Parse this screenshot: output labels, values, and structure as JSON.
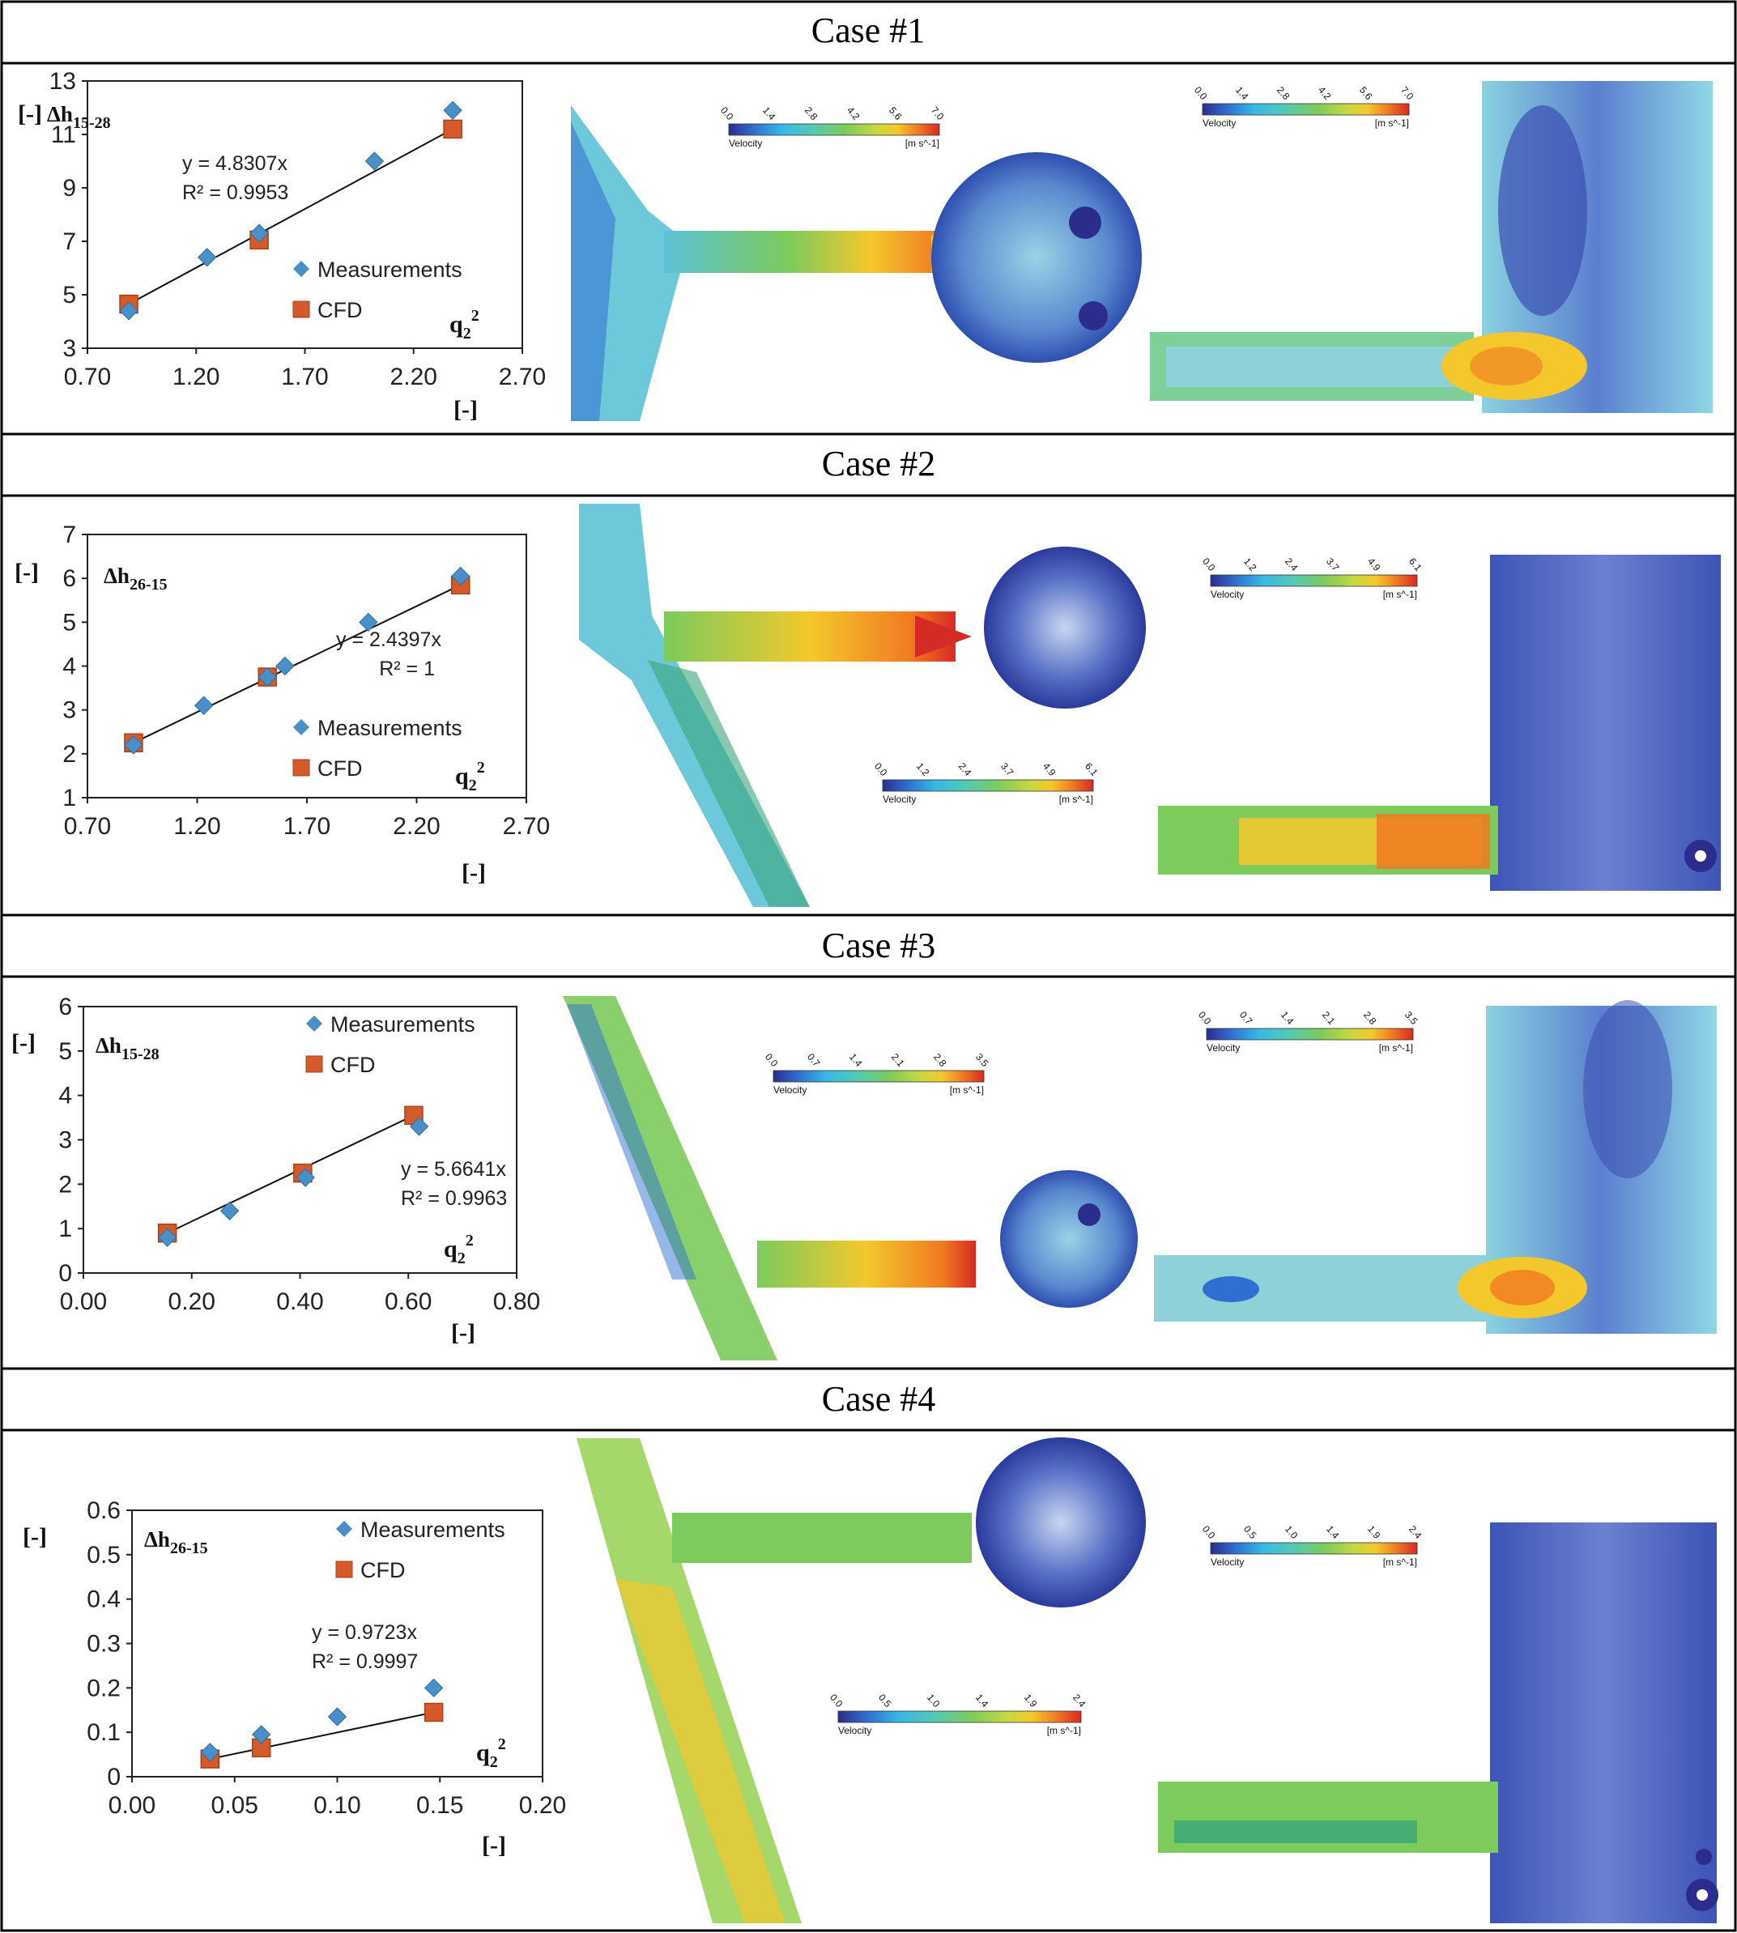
{
  "colors": {
    "measurement": "#4a90c8",
    "cfd": "#d45a2a",
    "fit_line": "#111111",
    "colormap": [
      "#2b2d8c",
      "#2f6fd1",
      "#36b9e6",
      "#55c9b3",
      "#7ccb5c",
      "#c8d840",
      "#f4c82c",
      "#f07a22",
      "#d62a24"
    ]
  },
  "legend": {
    "measurements": "Measurements",
    "cfd": "CFD"
  },
  "units": {
    "bracket": "[-]"
  },
  "cases": [
    {
      "title": "Case #1",
      "chart_data": {
        "type": "scatter",
        "ytitle_main": "Δh",
        "ytitle_sub": "15-28",
        "xlabel": "[-]",
        "ylabel": "[-]",
        "x_name_main": "q",
        "x_name_sub": "2",
        "x_name_sup": "2",
        "xlim": [
          0.7,
          2.7
        ],
        "ylim": [
          3,
          13
        ],
        "xticks": [
          "0.70",
          "1.20",
          "1.70",
          "2.20",
          "2.70"
        ],
        "yticks": [
          "3",
          "5",
          "7",
          "9",
          "11",
          "13"
        ],
        "measurements": [
          [
            0.89,
            4.4
          ],
          [
            1.25,
            6.4
          ],
          [
            1.49,
            7.3
          ],
          [
            2.02,
            10.0
          ],
          [
            2.38,
            11.9
          ]
        ],
        "cfd": [
          [
            0.89,
            4.65
          ],
          [
            1.49,
            7.05
          ],
          [
            2.38,
            11.2
          ]
        ],
        "fit_line": {
          "equation": "y = 4.8307x",
          "r2": "R² = 0.9953",
          "x": [
            0.89,
            2.38
          ]
        },
        "legend_position": "center-right"
      },
      "colorbar_a": {
        "ticks": [
          "0.0",
          "1.4",
          "2.8",
          "4.2",
          "5.6",
          "7.0"
        ],
        "label": "Velocity",
        "unit": "[m s^-1]"
      },
      "colorbar_b": {
        "ticks": [
          "0.0",
          "1.4",
          "2.8",
          "4.2",
          "5.6",
          "7.0"
        ],
        "label": "Velocity",
        "unit": "[m s^-1]"
      }
    },
    {
      "title": "Case #2",
      "chart_data": {
        "type": "scatter",
        "ytitle_main": "Δh",
        "ytitle_sub": "26-15",
        "xlabel": "[-]",
        "ylabel": "[-]",
        "x_name_main": "q",
        "x_name_sub": "2",
        "x_name_sup": "2",
        "xlim": [
          0.7,
          2.7
        ],
        "ylim": [
          1,
          7
        ],
        "xticks": [
          "0.70",
          "1.20",
          "1.70",
          "2.20",
          "2.70"
        ],
        "yticks": [
          "1",
          "2",
          "3",
          "4",
          "5",
          "6",
          "7"
        ],
        "measurements": [
          [
            0.91,
            2.2
          ],
          [
            1.23,
            3.1
          ],
          [
            1.52,
            3.75
          ],
          [
            1.6,
            4.0
          ],
          [
            1.98,
            5.0
          ],
          [
            2.4,
            6.05
          ]
        ],
        "cfd": [
          [
            0.91,
            2.25
          ],
          [
            1.52,
            3.75
          ],
          [
            2.4,
            5.85
          ]
        ],
        "fit_line": {
          "equation": "y = 2.4397x",
          "r2": "R² = 1",
          "x": [
            0.91,
            2.4
          ]
        },
        "legend_position": "center"
      },
      "colorbar_a": {
        "ticks": [
          "0.0",
          "1.2",
          "2.4",
          "3.7",
          "4.9",
          "6.1"
        ],
        "label": "Velocity",
        "unit": "[m s^-1]"
      },
      "colorbar_b": {
        "ticks": [
          "0.0",
          "1.2",
          "2.4",
          "3.7",
          "4.9",
          "6.1"
        ],
        "label": "Velocity",
        "unit": "[m s^-1]"
      }
    },
    {
      "title": "Case #3",
      "chart_data": {
        "type": "scatter",
        "ytitle_main": "Δh",
        "ytitle_sub": "15-28",
        "xlabel": "[-]",
        "ylabel": "[-]",
        "x_name_main": "q",
        "x_name_sub": "2",
        "x_name_sup": "2",
        "xlim": [
          0,
          0.8
        ],
        "ylim": [
          0,
          6
        ],
        "xticks": [
          "0.00",
          "0.20",
          "0.40",
          "0.60",
          "0.80"
        ],
        "yticks": [
          "0",
          "1",
          "2",
          "3",
          "4",
          "5",
          "6"
        ],
        "measurements": [
          [
            0.155,
            0.8
          ],
          [
            0.27,
            1.4
          ],
          [
            0.41,
            2.15
          ],
          [
            0.62,
            3.3
          ]
        ],
        "cfd": [
          [
            0.155,
            0.9
          ],
          [
            0.405,
            2.25
          ],
          [
            0.61,
            3.55
          ]
        ],
        "fit_line": {
          "equation": "y = 5.6641x",
          "r2": "R² = 0.9963",
          "x": [
            0.155,
            0.61
          ]
        },
        "legend_position": "top-right"
      },
      "colorbar_a": {
        "ticks": [
          "0.0",
          "0.7",
          "1.4",
          "2.1",
          "2.8",
          "3.5"
        ],
        "label": "Velocity",
        "unit": "[m s^-1]"
      },
      "colorbar_b": {
        "ticks": [
          "0.0",
          "0.7",
          "1.4",
          "2.1",
          "2.8",
          "3.5"
        ],
        "label": "Velocity",
        "unit": "[m s^-1]"
      }
    },
    {
      "title": "Case #4",
      "chart_data": {
        "type": "scatter",
        "ytitle_main": "Δh",
        "ytitle_sub": "26-15",
        "xlabel": "[-]",
        "ylabel": "[-]",
        "x_name_main": "q",
        "x_name_sub": "2",
        "x_name_sup": "2",
        "xlim": [
          0,
          0.2
        ],
        "ylim": [
          0,
          0.6
        ],
        "xticks": [
          "0.00",
          "0.05",
          "0.10",
          "0.15",
          "0.20"
        ],
        "yticks": [
          "0",
          "0.1",
          "0.2",
          "0.3",
          "0.4",
          "0.5",
          "0.6"
        ],
        "measurements": [
          [
            0.038,
            0.055
          ],
          [
            0.063,
            0.095
          ],
          [
            0.1,
            0.135
          ],
          [
            0.147,
            0.2
          ]
        ],
        "cfd": [
          [
            0.038,
            0.04
          ],
          [
            0.063,
            0.065
          ],
          [
            0.147,
            0.145
          ]
        ],
        "fit_line": {
          "equation": "y = 0.9723x",
          "r2": "R² = 0.9997",
          "x": [
            0.038,
            0.147
          ]
        },
        "legend_position": "top-right"
      },
      "colorbar_a": {
        "ticks": [
          "0.0",
          "0.5",
          "1.0",
          "1.4",
          "1.9",
          "2.4"
        ],
        "label": "Velocity",
        "unit": "[m s^-1]"
      },
      "colorbar_b": {
        "ticks": [
          "0.0",
          "0.5",
          "1.0",
          "1.4",
          "1.9",
          "2.4"
        ],
        "label": "Velocity",
        "unit": "[m s^-1]"
      }
    }
  ]
}
